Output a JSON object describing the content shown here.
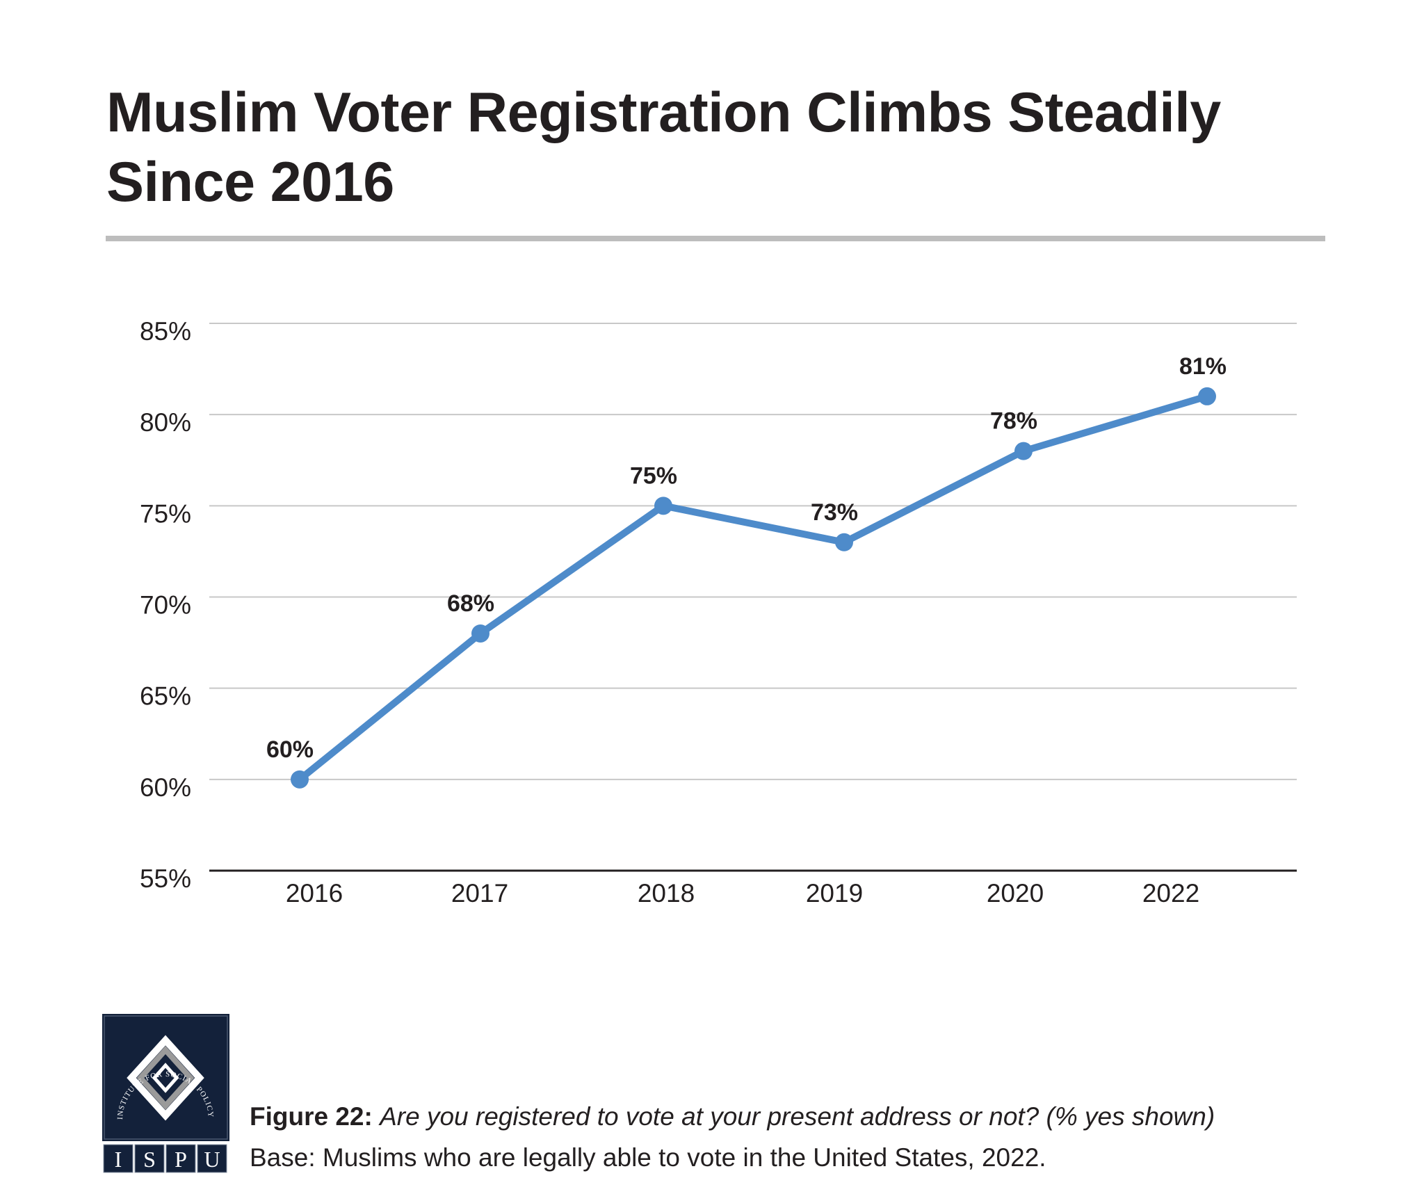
{
  "title": "Muslim Voter Registration Climbs Steadily Since 2016",
  "chart_data": {
    "type": "line",
    "title": "Muslim Voter Registration Climbs Steadily Since 2016",
    "categories": [
      "2016",
      "2017",
      "2018",
      "2019",
      "2020",
      "2022"
    ],
    "values": [
      60,
      68,
      75,
      73,
      78,
      81
    ],
    "data_labels": [
      "60%",
      "68%",
      "75%",
      "73%",
      "78%",
      "81%"
    ],
    "ylim": [
      55,
      85
    ],
    "yticks": [
      55,
      60,
      65,
      70,
      75,
      80,
      85
    ],
    "ytick_labels": [
      "55%",
      "60%",
      "65%",
      "70%",
      "75%",
      "80%",
      "85%"
    ],
    "xlabel": "",
    "ylabel": "",
    "grid": true,
    "line_color": "#4e8bca"
  },
  "caption": {
    "figure_label": "Figure 22:",
    "question": "Are you registered to vote at your present address or not? (% yes shown)",
    "base": "Base: Muslims who are legally able to vote in the United States, 2022."
  },
  "logo": {
    "ring_text": "INSTITUTE FOR SOCIAL POLICY AND UNDERSTANDING",
    "letters": [
      "I",
      "S",
      "P",
      "U"
    ],
    "background": "#13213a"
  }
}
